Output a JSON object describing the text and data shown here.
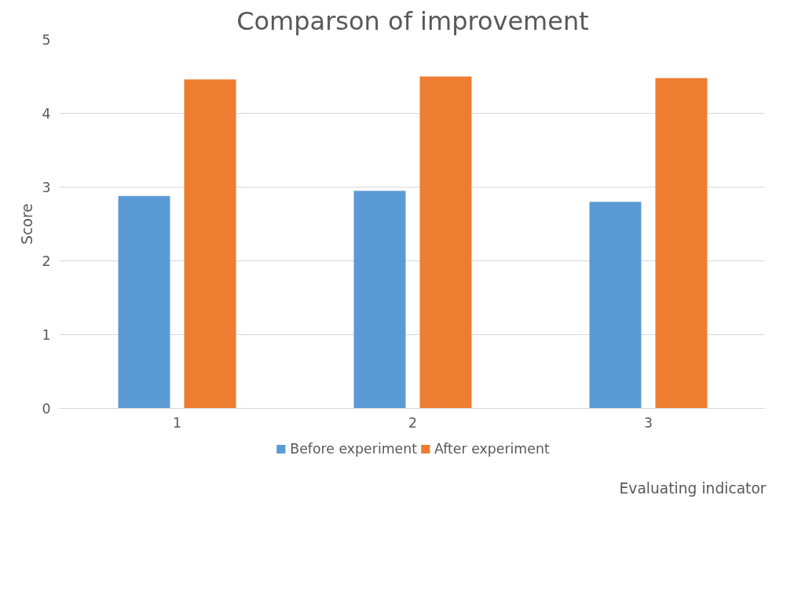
{
  "chart_data": {
    "type": "bar",
    "title": "Comparson of improvement",
    "xlabel": "Evaluating indicator",
    "ylabel": "Score",
    "categories": [
      "1",
      "2",
      "3"
    ],
    "series": [
      {
        "name": "Before experiment",
        "color": "#5b9bd5",
        "values": [
          2.88,
          2.95,
          2.8
        ]
      },
      {
        "name": "After experiment",
        "color": "#ed7d31",
        "values": [
          4.46,
          4.5,
          4.48
        ]
      }
    ],
    "ylim": [
      0,
      5
    ],
    "yticks": [
      0,
      1,
      2,
      3,
      4,
      5
    ],
    "grid": "y",
    "legend": "bottom"
  }
}
